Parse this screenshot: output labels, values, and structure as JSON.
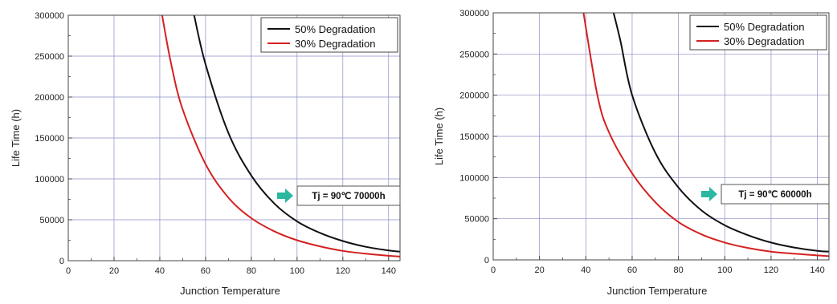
{
  "colors": {
    "grid": "#8c8cc8",
    "frame": "#444444",
    "series_black": "#111111",
    "series_red": "#d42020",
    "arrow": "#2ab8a0"
  },
  "chart_data": [
    {
      "type": "line",
      "title": "",
      "xlabel": "Junction Temperature",
      "ylabel": "Life Time (h)",
      "xlim": [
        0,
        145
      ],
      "ylim": [
        0,
        300000
      ],
      "x_ticks": [
        0,
        20,
        40,
        60,
        80,
        100,
        120,
        140
      ],
      "x_tick_labels": [
        "0",
        "20",
        "40",
        "60",
        "80",
        "100",
        "120",
        "140"
      ],
      "y_ticks": [
        0,
        50000,
        100000,
        150000,
        200000,
        250000,
        300000
      ],
      "y_tick_labels": [
        "0",
        "50000",
        "100000",
        "150000",
        "200000",
        "250000",
        "300000"
      ],
      "grid": true,
      "legend_position": "top-right",
      "series": [
        {
          "name": "50% Degradation",
          "color": "#111111",
          "x": [
            55,
            60,
            70,
            80,
            90,
            100,
            110,
            120,
            130,
            140,
            145
          ],
          "y": [
            300000,
            240000,
            156000,
            104000,
            70000,
            48000,
            34000,
            24000,
            17000,
            12500,
            11000
          ]
        },
        {
          "name": "30% Degradation",
          "color": "#d42020",
          "x": [
            41,
            45,
            50,
            60,
            70,
            80,
            90,
            100,
            110,
            120,
            130,
            140,
            145
          ],
          "y": [
            300000,
            240000,
            185000,
            118000,
            77000,
            52000,
            36000,
            25000,
            17500,
            12000,
            8500,
            6000,
            5000
          ]
        }
      ],
      "annotation": {
        "text": "Tj = 90℃ 70000h"
      }
    },
    {
      "type": "line",
      "title": "",
      "xlabel": "Junction Temperature",
      "ylabel": "Life Time (h)",
      "xlim": [
        0,
        145
      ],
      "ylim": [
        0,
        300000
      ],
      "x_ticks": [
        0,
        20,
        40,
        60,
        80,
        100,
        120,
        140
      ],
      "x_tick_labels": [
        "0",
        "20",
        "40",
        "60",
        "80",
        "100",
        "120",
        "140"
      ],
      "y_ticks": [
        0,
        50000,
        100000,
        150000,
        200000,
        250000,
        300000
      ],
      "y_tick_labels": [
        "0",
        "50000",
        "100000",
        "150000",
        "200000",
        "250000",
        "300000"
      ],
      "grid": true,
      "legend_position": "top-right",
      "series": [
        {
          "name": "50% Degradation",
          "color": "#111111",
          "x": [
            52,
            55,
            60,
            70,
            80,
            90,
            100,
            110,
            120,
            130,
            140,
            145
          ],
          "y": [
            300000,
            265000,
            200000,
            130000,
            88000,
            60000,
            42000,
            30000,
            21000,
            15000,
            11000,
            10000
          ]
        },
        {
          "name": "30% Degradation",
          "color": "#d42020",
          "x": [
            39,
            45,
            50,
            60,
            70,
            80,
            90,
            100,
            110,
            120,
            130,
            140,
            145
          ],
          "y": [
            300000,
            200000,
            155000,
            105000,
            70000,
            46000,
            31000,
            21000,
            14500,
            10000,
            7500,
            5500,
            4500
          ]
        }
      ],
      "annotation": {
        "text": "Tj = 90℃ 60000h"
      }
    }
  ]
}
